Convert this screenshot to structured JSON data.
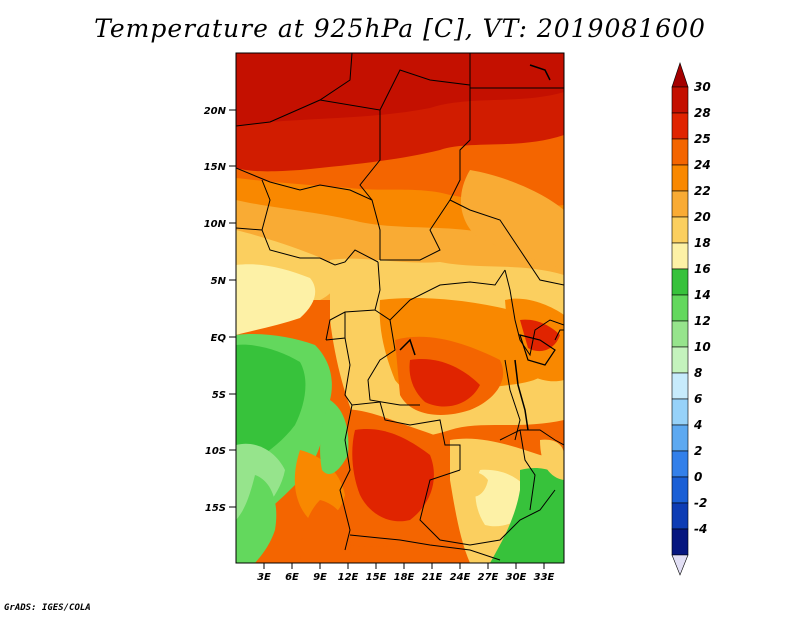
{
  "title": "Temperature at 925hPa [C], VT: 2019081600",
  "credit": "GrADS: IGES/COLA",
  "map": {
    "lat_ticks": [
      "20N",
      "15N",
      "10N",
      "5N",
      "EQ",
      "5S",
      "10S",
      "15S"
    ],
    "lon_ticks": [
      "3E",
      "6E",
      "9E",
      "12E",
      "15E",
      "18E",
      "21E",
      "24E",
      "27E",
      "30E",
      "33E"
    ]
  },
  "colorbar": {
    "labels": [
      "30",
      "28",
      "25",
      "24",
      "22",
      "20",
      "18",
      "16",
      "14",
      "12",
      "10",
      "8",
      "6",
      "4",
      "2",
      "0",
      "-2",
      "-4"
    ],
    "colors": [
      "#c41000",
      "#e02400",
      "#f46500",
      "#f98800",
      "#f9ab34",
      "#fbcf5f",
      "#fdf1a6",
      "#37c23b",
      "#63d85d",
      "#96e48c",
      "#c4f3bd",
      "#c7ebfc",
      "#97d2f9",
      "#5da9f1",
      "#3380ea",
      "#1a5fd6",
      "#0d3cb4",
      "#07177f"
    ],
    "top_arrow_color": "#a40000",
    "bottom_arrow_color": "#e2dff5"
  }
}
